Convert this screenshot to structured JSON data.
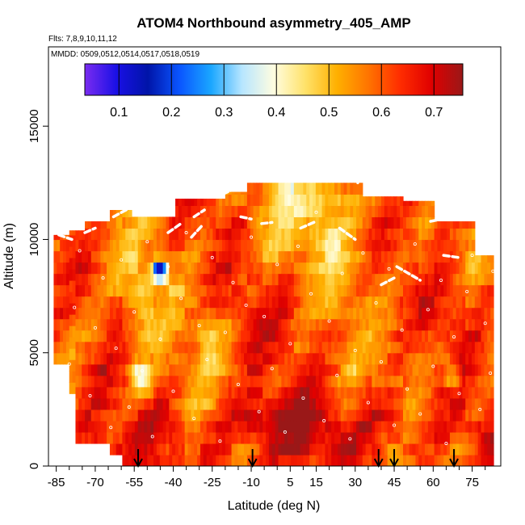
{
  "chart_data": {
    "type": "heatmap",
    "title": "ATOM4 Northbound asymmetry_405_AMP",
    "flights_label": "Flts: 7,8,9,10,11,12",
    "dates_label": "MMDD: 0509,0512,0514,0517,0518,0519",
    "xlabel": "Latitude (deg N)",
    "ylabel": "Altitude (m)",
    "xlim": [
      -88,
      86
    ],
    "ylim": [
      0,
      18500
    ],
    "x_ticks": [
      -85,
      -70,
      -55,
      -40,
      -25,
      -10,
      5,
      15,
      30,
      45,
      60,
      75
    ],
    "x_minor_ticks": [
      -80,
      -75,
      -65,
      -60,
      -50,
      -45,
      -35,
      -30,
      -20,
      -15,
      -5,
      0,
      10,
      20,
      25,
      35,
      40,
      50,
      55,
      65,
      70,
      80
    ],
    "y_ticks": [
      0,
      5000,
      10000,
      15000
    ],
    "colorbar": {
      "min": 0.035,
      "max": 0.755,
      "ticks": [
        0.1,
        0.2,
        0.3,
        0.4,
        0.5,
        0.6,
        0.7
      ],
      "stops": [
        "#7a2cf0",
        "#1a10e6",
        "#0014a8",
        "#0a55ff",
        "#1aa6ff",
        "#b8e6ff",
        "#fffde0",
        "#ffe26a",
        "#ffb000",
        "#ff7400",
        "#ff2d00",
        "#e00000",
        "#9a1818"
      ]
    },
    "flight_day_markers_lat": [
      -53.5,
      -9.5,
      39,
      45,
      68
    ],
    "lat_range": [
      -86,
      83
    ],
    "row_height_m": 500,
    "base_value": 0.6,
    "anomalies": [
      {
        "lat": -53,
        "alt": 3700,
        "slat": 3.0,
        "salt": 500,
        "amp": -0.22
      },
      {
        "lat": 67,
        "alt": 3700,
        "slat": 2.5,
        "salt": 450,
        "amp": -0.2
      },
      {
        "lat": -46,
        "alt": 8400,
        "slat": 2.0,
        "salt": 300,
        "amp": -0.45
      },
      {
        "lat": -53,
        "alt": 7500,
        "slat": 4.0,
        "salt": 1000,
        "amp": -0.1
      },
      {
        "lat": -28,
        "alt": 5800,
        "slat": 4.0,
        "salt": 900,
        "amp": -0.08
      },
      {
        "lat": 10,
        "alt": 10000,
        "slat": 18.0,
        "salt": 1200,
        "amp": -0.08
      },
      {
        "lat": 15,
        "alt": 11800,
        "slat": 30.0,
        "salt": 700,
        "amp": -0.06
      },
      {
        "lat": -80,
        "alt": 6000,
        "slat": 7.0,
        "salt": 1500,
        "amp": -0.06
      },
      {
        "lat": 0,
        "alt": 1000,
        "slat": 40.0,
        "salt": 1000,
        "amp": 0.08
      },
      {
        "lat": -5,
        "alt": 2000,
        "slat": 10.0,
        "salt": 600,
        "amp": 0.09
      },
      {
        "lat": 55,
        "alt": 9000,
        "slat": 10.0,
        "salt": 1000,
        "amp": -0.05
      },
      {
        "lat": 42,
        "alt": 2000,
        "slat": 8.0,
        "salt": 900,
        "amp": 0.1
      }
    ],
    "sample_points": [
      {
        "lat": -85,
        "alt": 900
      },
      {
        "lat": -82,
        "alt": 2200
      },
      {
        "lat": -80,
        "alt": 4500
      },
      {
        "lat": -78,
        "alt": 7000
      },
      {
        "lat": -76,
        "alt": 9500
      },
      {
        "lat": -72,
        "alt": 3100
      },
      {
        "lat": -70,
        "alt": 6100
      },
      {
        "lat": -67,
        "alt": 8300
      },
      {
        "lat": -64,
        "alt": 1700
      },
      {
        "lat": -62,
        "alt": 5200
      },
      {
        "lat": -60,
        "alt": 9100
      },
      {
        "lat": -57,
        "alt": 2600
      },
      {
        "lat": -55,
        "alt": 6800
      },
      {
        "lat": -52,
        "alt": 4200
      },
      {
        "lat": -50,
        "alt": 9900
      },
      {
        "lat": -48,
        "alt": 1300
      },
      {
        "lat": -45,
        "alt": 5600
      },
      {
        "lat": -42,
        "alt": 8800
      },
      {
        "lat": -40,
        "alt": 3300
      },
      {
        "lat": -37,
        "alt": 7400
      },
      {
        "lat": -35,
        "alt": 10300
      },
      {
        "lat": -32,
        "alt": 2100
      },
      {
        "lat": -30,
        "alt": 6200
      },
      {
        "lat": -27,
        "alt": 4700
      },
      {
        "lat": -25,
        "alt": 9200
      },
      {
        "lat": -22,
        "alt": 1100
      },
      {
        "lat": -20,
        "alt": 5900
      },
      {
        "lat": -17,
        "alt": 8100
      },
      {
        "lat": -15,
        "alt": 3600
      },
      {
        "lat": -12,
        "alt": 7100
      },
      {
        "lat": -10,
        "alt": 10100
      },
      {
        "lat": -7,
        "alt": 2400
      },
      {
        "lat": -5,
        "alt": 6600
      },
      {
        "lat": -2,
        "alt": 4300
      },
      {
        "lat": 0,
        "alt": 8900
      },
      {
        "lat": 3,
        "alt": 1500
      },
      {
        "lat": 5,
        "alt": 5400
      },
      {
        "lat": 8,
        "alt": 9700
      },
      {
        "lat": 10,
        "alt": 3000
      },
      {
        "lat": 13,
        "alt": 7600
      },
      {
        "lat": 15,
        "alt": 11200
      },
      {
        "lat": 18,
        "alt": 2000
      },
      {
        "lat": 20,
        "alt": 6400
      },
      {
        "lat": 23,
        "alt": 4000
      },
      {
        "lat": 25,
        "alt": 8500
      },
      {
        "lat": 28,
        "alt": 1200
      },
      {
        "lat": 30,
        "alt": 5100
      },
      {
        "lat": 33,
        "alt": 9400
      },
      {
        "lat": 35,
        "alt": 2800
      },
      {
        "lat": 38,
        "alt": 7200
      },
      {
        "lat": 40,
        "alt": 4600
      },
      {
        "lat": 43,
        "alt": 8700
      },
      {
        "lat": 45,
        "alt": 1800
      },
      {
        "lat": 48,
        "alt": 6000
      },
      {
        "lat": 50,
        "alt": 3400
      },
      {
        "lat": 53,
        "alt": 9800
      },
      {
        "lat": 55,
        "alt": 2300
      },
      {
        "lat": 58,
        "alt": 6900
      },
      {
        "lat": 60,
        "alt": 4400
      },
      {
        "lat": 63,
        "alt": 8200
      },
      {
        "lat": 65,
        "alt": 1000
      },
      {
        "lat": 68,
        "alt": 5700
      },
      {
        "lat": 70,
        "alt": 3200
      },
      {
        "lat": 73,
        "alt": 7700
      },
      {
        "lat": 75,
        "alt": 9300
      },
      {
        "lat": 78,
        "alt": 2500
      },
      {
        "lat": 80,
        "alt": 6300
      },
      {
        "lat": 82,
        "alt": 4100
      },
      {
        "lat": 83,
        "alt": 8600
      }
    ],
    "trajectory_segments": [
      {
        "lat": [
          -84,
          -79
        ],
        "alt": [
          10200,
          10000
        ]
      },
      {
        "lat": [
          -74,
          -70
        ],
        "alt": [
          10300,
          10500
        ]
      },
      {
        "lat": [
          -63,
          -55
        ],
        "alt": [
          11000,
          11500
        ]
      },
      {
        "lat": [
          -32,
          -28
        ],
        "alt": [
          11000,
          11300
        ]
      },
      {
        "lat": [
          -21,
          -17
        ],
        "alt": [
          12000,
          12200
        ]
      },
      {
        "lat": [
          -14,
          -10
        ],
        "alt": [
          11000,
          10900
        ]
      },
      {
        "lat": [
          -42,
          -37
        ],
        "alt": [
          10300,
          10700
        ]
      },
      {
        "lat": [
          -33,
          -29
        ],
        "alt": [
          10100,
          10600
        ]
      },
      {
        "lat": [
          -6,
          -2
        ],
        "alt": [
          10700,
          10750
        ]
      },
      {
        "lat": [
          9,
          15
        ],
        "alt": [
          10500,
          10800
        ]
      },
      {
        "lat": [
          24,
          30
        ],
        "alt": [
          10500,
          10000
        ]
      },
      {
        "lat": [
          40,
          45
        ],
        "alt": [
          8000,
          8300
        ]
      },
      {
        "lat": [
          46,
          55
        ],
        "alt": [
          8800,
          8200
        ]
      },
      {
        "lat": [
          59,
          68
        ],
        "alt": [
          10800,
          11000
        ]
      },
      {
        "lat": [
          64,
          70
        ],
        "alt": [
          9300,
          9200
        ]
      },
      {
        "lat": [
          31,
          32
        ],
        "alt": [
          12500,
          12900
        ]
      }
    ]
  }
}
